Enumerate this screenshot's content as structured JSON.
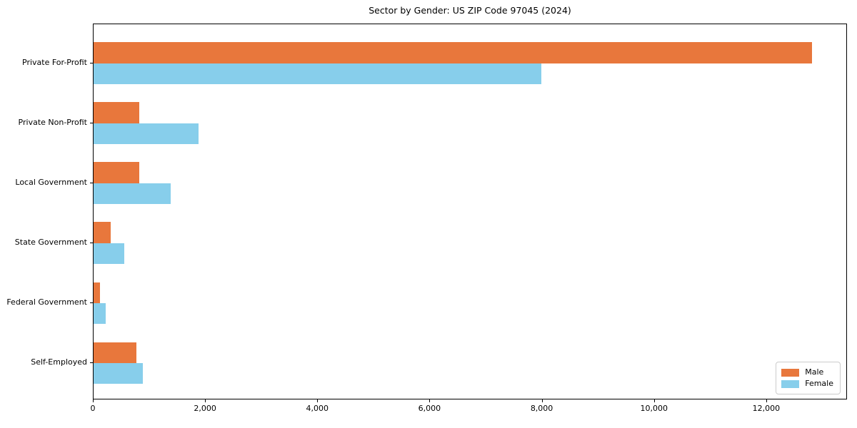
{
  "title": "Sector by Gender: US ZIP Code 97045 (2024)",
  "background_color": "#ffffff",
  "chart_data": {
    "type": "bar",
    "orientation": "horizontal",
    "title": "Sector by Gender: US ZIP Code 97045 (2024)",
    "categories": [
      "Private For-Profit",
      "Private Non-Profit",
      "Local Government",
      "State Government",
      "Federal Government",
      "Self-Employed"
    ],
    "series": [
      {
        "name": "Male",
        "color": "#e8773c",
        "values": [
          12800,
          810,
          820,
          300,
          115,
          760
        ]
      },
      {
        "name": "Female",
        "color": "#87ceeb",
        "values": [
          7980,
          1870,
          1370,
          550,
          210,
          880
        ]
      }
    ],
    "xlabel": "",
    "ylabel": "",
    "xlim": [
      0,
      13440
    ],
    "xticks": [
      0,
      2000,
      4000,
      6000,
      8000,
      10000,
      12000
    ],
    "xtick_labels": [
      "0",
      "2,000",
      "4,000",
      "6,000",
      "8,000",
      "10,000",
      "12,000"
    ],
    "grid": false,
    "legend": {
      "position": "lower right",
      "entries": [
        {
          "label": "Male",
          "color": "#e8773c"
        },
        {
          "label": "Female",
          "color": "#87ceeb"
        }
      ]
    }
  }
}
